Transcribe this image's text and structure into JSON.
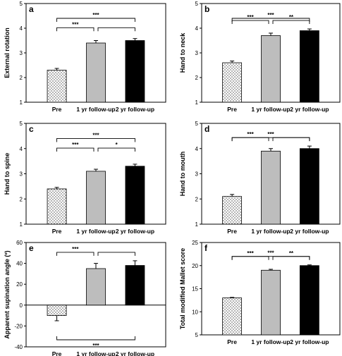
{
  "chart_data": [
    {
      "type": "bar",
      "panel_label": "a",
      "ylabel": "External rotation",
      "categories": [
        "Pre",
        "1 yr follow-up",
        "2 yr follow-up"
      ],
      "values": [
        2.3,
        3.4,
        3.5
      ],
      "errors": [
        0.07,
        0.1,
        0.08
      ],
      "ylim": [
        1,
        5
      ],
      "yticks": [
        1,
        2,
        3,
        4,
        5
      ],
      "fills": [
        "dots",
        "#bdbdbd",
        "#000000"
      ],
      "significance": [
        {
          "from": 0,
          "to": 1,
          "label": "***",
          "level": 1,
          "side": "top"
        },
        {
          "from": 1,
          "to": 2,
          "label": "",
          "level": 1,
          "side": "top"
        },
        {
          "from": 0,
          "to": 2,
          "label": "***",
          "level": 2,
          "side": "top"
        }
      ]
    },
    {
      "type": "bar",
      "panel_label": "b",
      "ylabel": "Hand to neck",
      "categories": [
        "Pre",
        "1 yr follow-up",
        "2 yr follow-up"
      ],
      "values": [
        2.6,
        3.7,
        3.9
      ],
      "errors": [
        0.07,
        0.1,
        0.07
      ],
      "ylim": [
        1,
        5
      ],
      "yticks": [
        1,
        2,
        3,
        4,
        5
      ],
      "fills": [
        "dots",
        "#bdbdbd",
        "#000000"
      ],
      "significance": [
        {
          "from": 0,
          "to": 1,
          "label": "***",
          "level": 1,
          "side": "top"
        },
        {
          "from": 1,
          "to": 2,
          "label": "**",
          "level": 1,
          "side": "top"
        },
        {
          "from": 0,
          "to": 2,
          "label": "***",
          "level": 2,
          "side": "top"
        }
      ]
    },
    {
      "type": "bar",
      "panel_label": "c",
      "ylabel": "Hand to spine",
      "categories": [
        "Pre",
        "1 yr follow-up",
        "2 yr follow-up"
      ],
      "values": [
        2.4,
        3.1,
        3.3
      ],
      "errors": [
        0.06,
        0.08,
        0.08
      ],
      "ylim": [
        1,
        5
      ],
      "yticks": [
        1,
        2,
        3,
        4,
        5
      ],
      "fills": [
        "dots",
        "#bdbdbd",
        "#000000"
      ],
      "significance": [
        {
          "from": 0,
          "to": 1,
          "label": "***",
          "level": 1,
          "side": "top"
        },
        {
          "from": 1,
          "to": 2,
          "label": "*",
          "level": 1,
          "side": "top"
        },
        {
          "from": 0,
          "to": 2,
          "label": "***",
          "level": 2,
          "side": "top"
        }
      ]
    },
    {
      "type": "bar",
      "panel_label": "d",
      "ylabel": "Hand to mouth",
      "categories": [
        "Pre",
        "1 yr follow-up",
        "2 yr follow-up"
      ],
      "values": [
        2.1,
        3.9,
        4.0
      ],
      "errors": [
        0.08,
        0.1,
        0.1
      ],
      "ylim": [
        1,
        5
      ],
      "yticks": [
        1,
        2,
        3,
        4,
        5
      ],
      "fills": [
        "dots",
        "#bdbdbd",
        "#000000"
      ],
      "significance": [
        {
          "from": 0,
          "to": 1,
          "label": "***",
          "level": 1,
          "side": "top"
        },
        {
          "from": 1,
          "to": 2,
          "label": "",
          "level": 1,
          "side": "top"
        },
        {
          "from": 0,
          "to": 2,
          "label": "***",
          "level": 2,
          "side": "top"
        }
      ]
    },
    {
      "type": "bar",
      "panel_label": "e",
      "ylabel": "Apparent supination angle (º)",
      "categories": [
        "Pre",
        "1 yr follow-up",
        "2 yr follow-up"
      ],
      "values": [
        -10,
        35,
        38
      ],
      "errors": [
        5,
        5,
        4.5
      ],
      "ylim": [
        -40,
        60
      ],
      "yticks": [
        -40,
        -20,
        0,
        20,
        40,
        60
      ],
      "fills": [
        "dots",
        "#bdbdbd",
        "#000000"
      ],
      "significance": [
        {
          "from": 0,
          "to": 1,
          "label": "***",
          "level": 1,
          "side": "top"
        },
        {
          "from": 1,
          "to": 2,
          "label": "",
          "level": 1,
          "side": "top"
        },
        {
          "from": 0,
          "to": 2,
          "label": "***",
          "level": 1,
          "side": "bottom"
        }
      ]
    },
    {
      "type": "bar",
      "panel_label": "f",
      "ylabel": "Total modified Mallet score",
      "categories": [
        "Pre",
        "1 yr follow-up",
        "2 yr follow-up"
      ],
      "values": [
        13,
        19,
        20
      ],
      "errors": [
        0.12,
        0.2,
        0.15
      ],
      "ylim": [
        5,
        25
      ],
      "yticks": [
        5,
        10,
        15,
        20,
        25
      ],
      "fills": [
        "dots",
        "#bdbdbd",
        "#000000"
      ],
      "significance": [
        {
          "from": 0,
          "to": 1,
          "label": "***",
          "level": 1,
          "side": "top"
        },
        {
          "from": 1,
          "to": 2,
          "label": "**",
          "level": 1,
          "side": "top"
        },
        {
          "from": 0,
          "to": 2,
          "label": "***",
          "level": 2,
          "side": "top"
        }
      ]
    }
  ]
}
